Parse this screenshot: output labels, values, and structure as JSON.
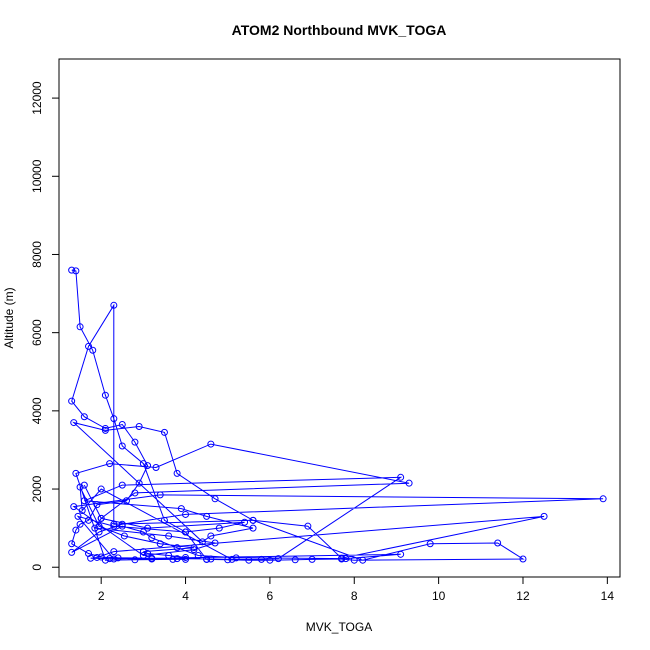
{
  "chart_data": {
    "type": "line",
    "title": "ATOM2 Northbound MVK_TOGA",
    "xlabel": "MVK_TOGA",
    "ylabel": "Altitude (m)",
    "xlim": [
      1.0,
      14.3
    ],
    "ylim": [
      -250,
      13000
    ],
    "xticks": [
      2,
      4,
      6,
      8,
      10,
      12,
      14
    ],
    "yticks": [
      0,
      2000,
      4000,
      6000,
      8000,
      10000,
      12000
    ],
    "grid": false,
    "color": "#0000ff",
    "series": [
      {
        "x": [
          1.3,
          1.4,
          1.5,
          1.8,
          2.1,
          2.3,
          2.5,
          3.0,
          3.5,
          4.0,
          4.5,
          5.0,
          5.5,
          6.0,
          6.6,
          7.0,
          7.7,
          8.0,
          12.0,
          11.4,
          9.8,
          8.2,
          5.6,
          2.3,
          2.3,
          1.7,
          1.3,
          1.6,
          2.1,
          2.5,
          2.8,
          3.1,
          2.9,
          2.6,
          1.9,
          1.7,
          1.5,
          1.4,
          1.3,
          1.7,
          2.0,
          2.4,
          3.2,
          3.8,
          4.6,
          5.1,
          2.0,
          1.55,
          1.5,
          1.95,
          2.55,
          3.4,
          4.2,
          3.0,
          3.1,
          3.6,
          4.0,
          4.5,
          5.8,
          6.2,
          9.1,
          2.5,
          1.6,
          3.9,
          4.5,
          5.6,
          4.6,
          4.4,
          1.35,
          2.1,
          2.9,
          3.5,
          3.8,
          4.7,
          5.6,
          6.9,
          7.7,
          12.5,
          2.3,
          1.9,
          1.75,
          2.2,
          3.2,
          4.0,
          3.7,
          2.8,
          2.1,
          1.4,
          2.2,
          3.3,
          4.6,
          9.3,
          2.8,
          2.0,
          1.85,
          3.6,
          4.7,
          4.2,
          3.0,
          1.35,
          3.4,
          13.9,
          4.0,
          2.5,
          1.95,
          1.3,
          2.5,
          3.0,
          3.2,
          3.8,
          4.3,
          5.2,
          7.8,
          9.1,
          2.3,
          1.45,
          2.3,
          4.0,
          4.8,
          5.4,
          3.1,
          2.0,
          1.6
        ],
        "y": [
          7600,
          7580,
          6150,
          5550,
          4400,
          3800,
          3100,
          2650,
          1200,
          900,
          200,
          190,
          180,
          180,
          190,
          200,
          210,
          180,
          210,
          620,
          600,
          180,
          1200,
          1100,
          6700,
          5650,
          4250,
          3850,
          3550,
          3650,
          3200,
          2600,
          2150,
          1700,
          1600,
          1200,
          1100,
          950,
          600,
          350,
          260,
          240,
          230,
          220,
          210,
          200,
          2000,
          1450,
          2050,
          1050,
          800,
          600,
          500,
          400,
          350,
          300,
          250,
          200,
          200,
          220,
          2300,
          2100,
          1700,
          1500,
          1300,
          1000,
          800,
          650,
          3700,
          3500,
          3600,
          3450,
          2400,
          1750,
          1200,
          1050,
          230,
          1300,
          400,
          250,
          230,
          220,
          210,
          200,
          200,
          190,
          180,
          2400,
          2650,
          2550,
          3150,
          2150,
          1900,
          1250,
          1000,
          800,
          620,
          450,
          300,
          1550,
          1850,
          1750,
          1350,
          1100,
          900,
          380,
          1050,
          900,
          750,
          500,
          300,
          240,
          220,
          330,
          210,
          1300,
          1050,
          900,
          1000,
          1150,
          1000,
          1250,
          2100
        ]
      }
    ]
  }
}
